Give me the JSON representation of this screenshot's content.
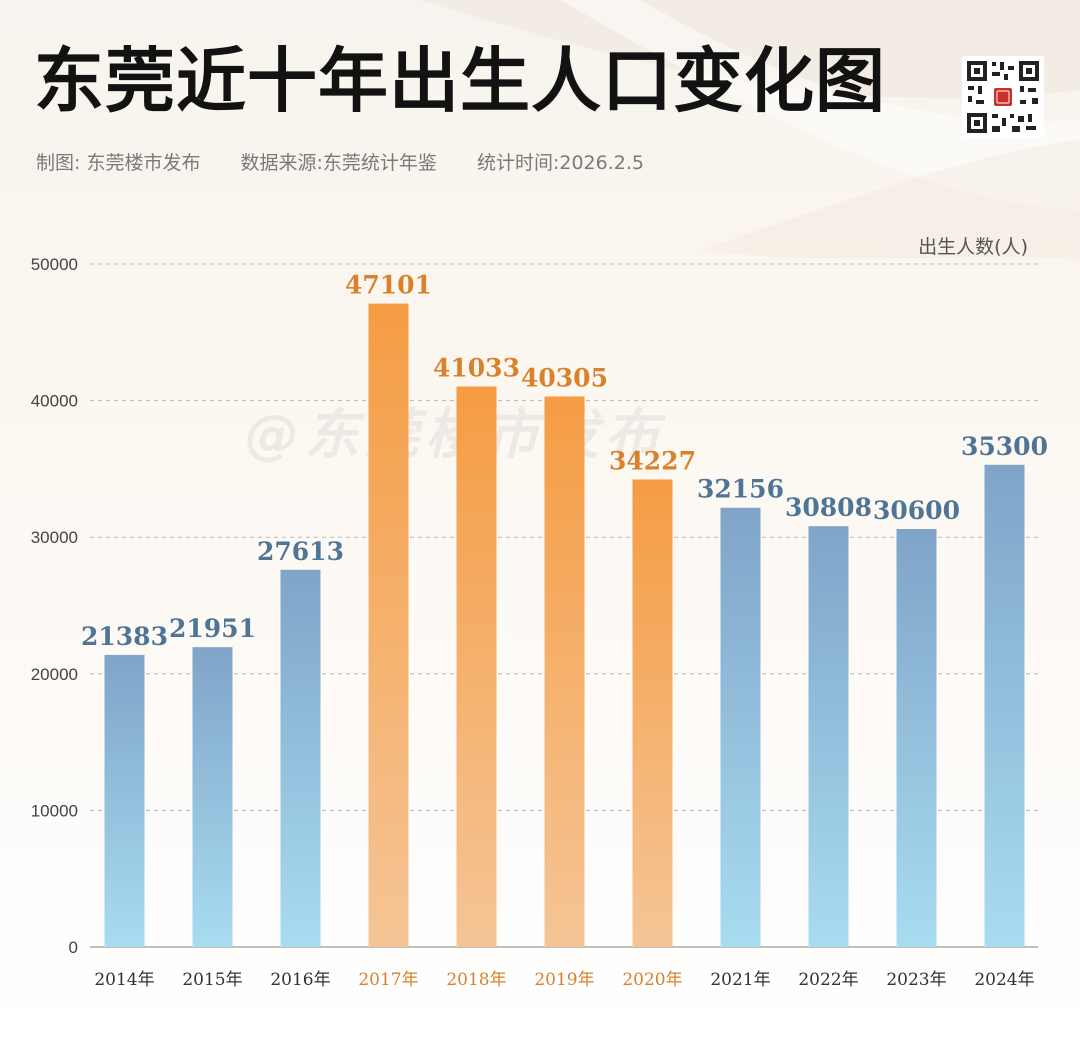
{
  "title": "东莞近十年出生人口变化图",
  "subtitle": {
    "maker": "制图: 东莞楼市发布",
    "source": "数据来源:东莞统计年鉴",
    "date": "统计时间:2026.2.5"
  },
  "watermark": "@东莞楼市发布",
  "colors": {
    "blue_top": "#7fa4c8",
    "blue_bottom": "#a8dcf1",
    "orange_top": "#f59c43",
    "orange_bottom": "#f5c596",
    "blue_label": "#4f7596",
    "orange_label": "#d9822b",
    "orange_tick": "#d9822b",
    "default_tick": "#333333"
  },
  "chart_data": {
    "type": "bar",
    "title": "东莞近十年出生人口变化图",
    "ylabel": "出生人数(人)",
    "xlabel": "",
    "ylim": [
      0,
      50000
    ],
    "yticks": [
      0,
      10000,
      20000,
      30000,
      40000,
      50000
    ],
    "grid": true,
    "categories": [
      "2014年",
      "2015年",
      "2016年",
      "2017年",
      "2018年",
      "2019年",
      "2020年",
      "2021年",
      "2022年",
      "2023年",
      "2024年"
    ],
    "values": [
      21383,
      21951,
      27613,
      47101,
      41033,
      40305,
      34227,
      32156,
      30808,
      30600,
      35300
    ],
    "highlighted": [
      false,
      false,
      false,
      true,
      true,
      true,
      true,
      false,
      false,
      false,
      false
    ]
  }
}
